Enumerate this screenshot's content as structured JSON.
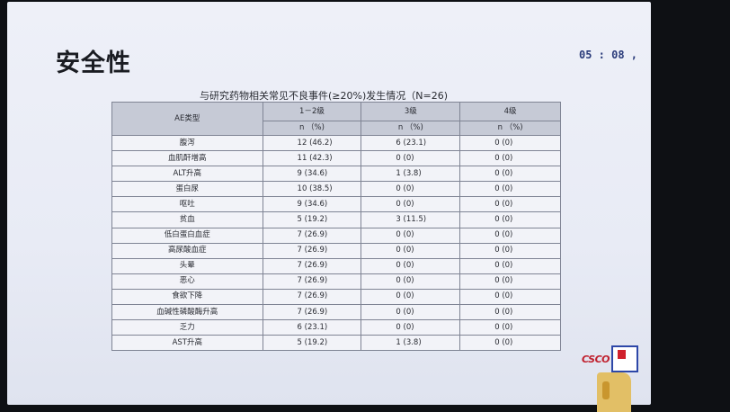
{
  "slide": {
    "title": "安全性",
    "timer": "05 : 08 ,",
    "caption": "与研究药物相关常见不良事件(≥20%)发生情况（N=26)"
  },
  "table": {
    "header_row1": [
      "AE类型",
      "1－2级",
      "3级",
      "4级"
    ],
    "header_row2": [
      "n （%)",
      "n （%)",
      "n （%)"
    ],
    "rows": [
      {
        "ae": "腹泻",
        "g12": "12 (46.2)",
        "g3": "6 (23.1)",
        "g4": "0 (0)"
      },
      {
        "ae": "血肌酐增高",
        "g12": "11 (42.3)",
        "g3": "0 (0)",
        "g4": "0 (0)"
      },
      {
        "ae": "ALT升高",
        "g12": "9 (34.6)",
        "g3": "1 (3.8)",
        "g4": "0 (0)"
      },
      {
        "ae": "蛋白尿",
        "g12": "10 (38.5)",
        "g3": "0 (0)",
        "g4": "0 (0)"
      },
      {
        "ae": "呕吐",
        "g12": "9 (34.6)",
        "g3": "0 (0)",
        "g4": "0 (0)"
      },
      {
        "ae": "贫血",
        "g12": "5 (19.2)",
        "g3": "3 (11.5)",
        "g4": "0 (0)"
      },
      {
        "ae": "低白蛋白血症",
        "g12": "7 (26.9)",
        "g3": "0 (0)",
        "g4": "0 (0)"
      },
      {
        "ae": "高尿酸血症",
        "g12": "7 (26.9)",
        "g3": "0 (0)",
        "g4": "0 (0)"
      },
      {
        "ae": "头晕",
        "g12": "7 (26.9)",
        "g3": "0 (0)",
        "g4": "0 (0)"
      },
      {
        "ae": "恶心",
        "g12": "7 (26.9)",
        "g3": "0 (0)",
        "g4": "0 (0)"
      },
      {
        "ae": "食欲下降",
        "g12": "7 (26.9)",
        "g3": "0 (0)",
        "g4": "0 (0)"
      },
      {
        "ae": "血碱性磷酸酶升高",
        "g12": "7 (26.9)",
        "g3": "0 (0)",
        "g4": "0 (0)"
      },
      {
        "ae": "乏力",
        "g12": "6 (23.1)",
        "g3": "0 (0)",
        "g4": "0 (0)"
      },
      {
        "ae": "AST升高",
        "g12": "5 (19.2)",
        "g3": "1 (3.8)",
        "g4": "0 (0)"
      }
    ]
  },
  "logo": {
    "text": "CSCO"
  }
}
